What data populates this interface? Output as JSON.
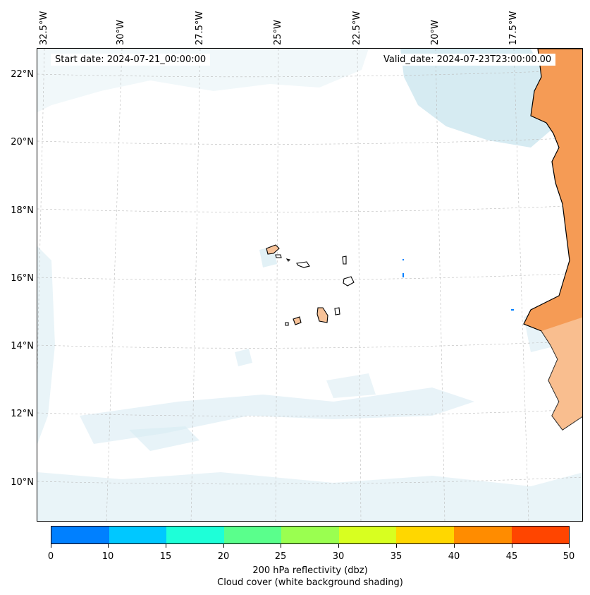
{
  "map": {
    "lon_labels": [
      "32.5°W",
      "30°W",
      "27.5°W",
      "25°W",
      "22.5°W",
      "20°W",
      "17.5°W"
    ],
    "lat_labels": [
      "22°N",
      "20°N",
      "18°N",
      "16°N",
      "14°N",
      "12°N",
      "10°N"
    ],
    "start_date": "Start date: 2024-07-21_00:00:00",
    "valid_date": "Valid_date: 2024-07-23T23:00:00.00",
    "colors": {
      "cloud": "#d6ebf2",
      "land_hot": "#f59b55",
      "island": "#f7c298",
      "coast": "#000000",
      "grid": "#bbbbbb"
    }
  },
  "colorbar": {
    "ticks": [
      "0",
      "10",
      "15",
      "20",
      "25",
      "30",
      "35",
      "40",
      "45",
      "50"
    ],
    "colors": [
      "#0080ff",
      "#00c8ff",
      "#1effd8",
      "#5aff8c",
      "#9aff50",
      "#d8ff20",
      "#ffd700",
      "#ff8c00",
      "#ff4500"
    ],
    "title_line1": "200 hPa reflectivity (dbz)",
    "title_line2": "Cloud cover (white background shading)"
  }
}
